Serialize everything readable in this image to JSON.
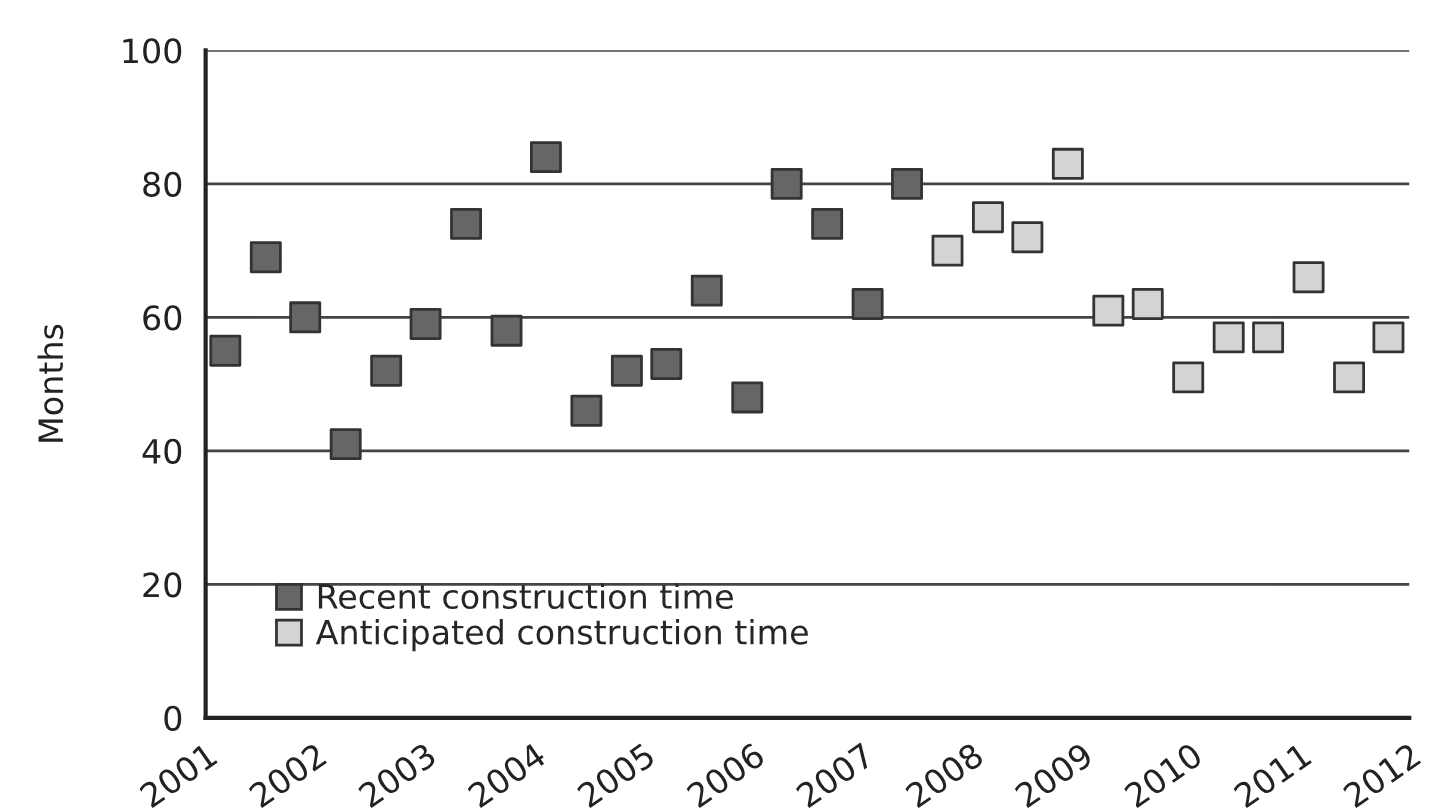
{
  "chart_data": {
    "type": "scatter",
    "ylabel": "Months",
    "xlim": [
      2001,
      2012
    ],
    "ylim": [
      0,
      100
    ],
    "xticks": [
      2001,
      2002,
      2003,
      2004,
      2005,
      2006,
      2007,
      2008,
      2009,
      2010,
      2011,
      2012
    ],
    "yticks": [
      0,
      20,
      40,
      60,
      80,
      100
    ],
    "grid": "y",
    "legend": "bottom left",
    "marker": "square",
    "series": [
      {
        "name": "Recent construction time",
        "color": "#666666",
        "x": [
          2001.18,
          2001.55,
          2001.91,
          2002.28,
          2002.65,
          2003.01,
          2003.38,
          2003.75,
          2004.11,
          2004.48,
          2004.85,
          2005.21,
          2005.58,
          2005.95,
          2006.31,
          2006.68,
          2007.05,
          2007.41
        ],
        "values": [
          55,
          69,
          60,
          41,
          52,
          59,
          74,
          58,
          84,
          46,
          52,
          53,
          64,
          48,
          80,
          74,
          62,
          80
        ]
      },
      {
        "name": "Anticipated construction time",
        "color": "#d4d4d4",
        "x": [
          2007.78,
          2008.15,
          2008.51,
          2008.88,
          2009.25,
          2009.61,
          2009.98,
          2010.35,
          2010.71,
          2011.08,
          2011.45,
          2011.81
        ],
        "values": [
          70,
          75,
          72,
          83,
          61,
          62,
          51,
          57,
          57,
          66,
          51,
          57
        ]
      }
    ]
  }
}
